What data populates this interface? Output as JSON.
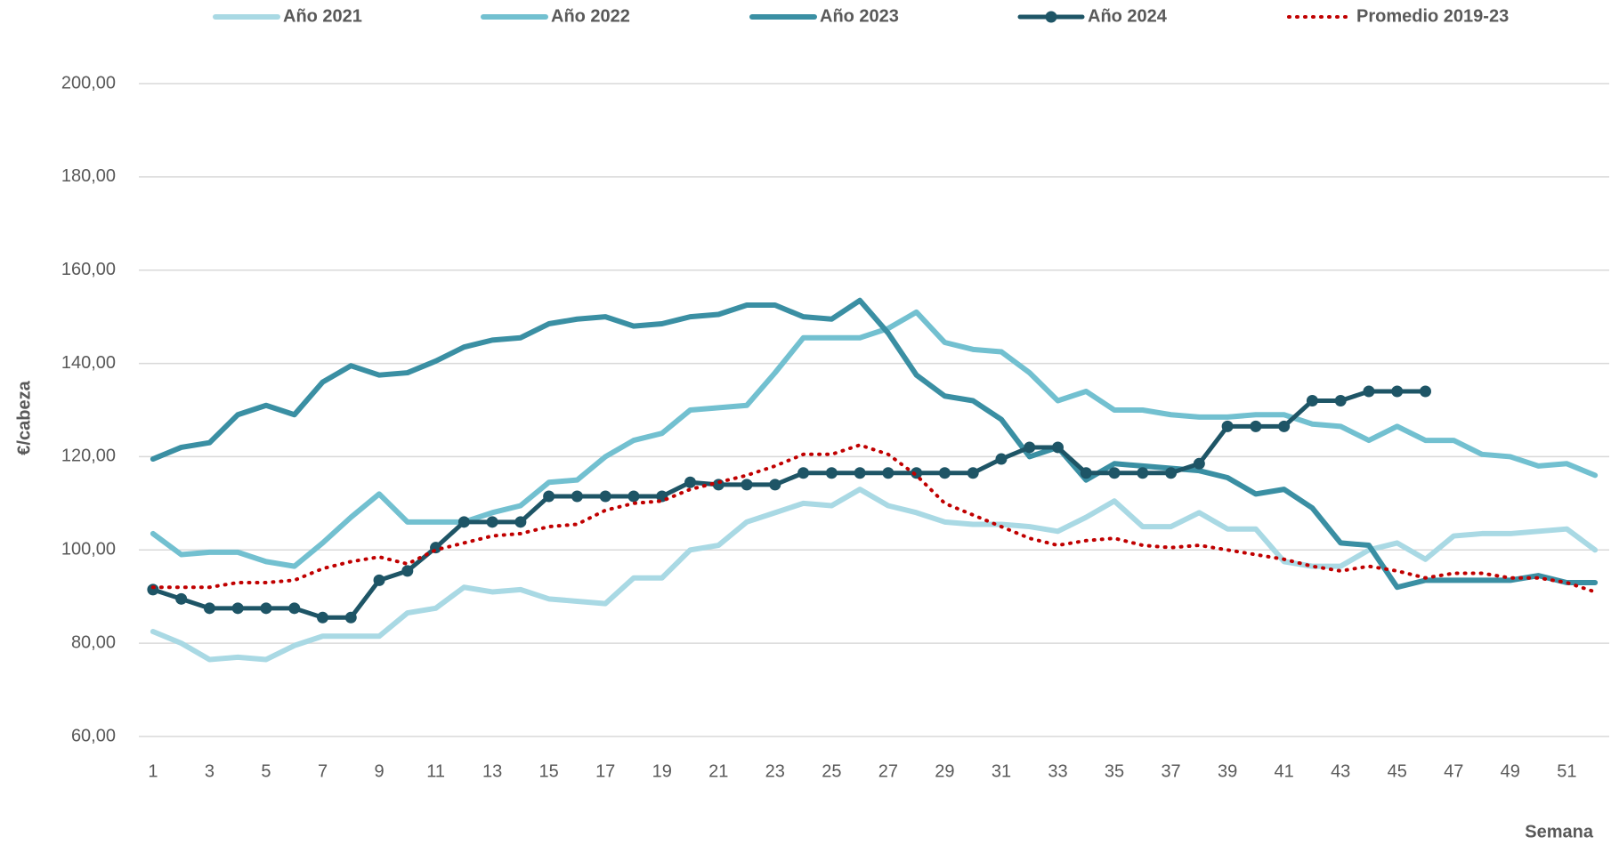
{
  "chart_data": {
    "type": "line",
    "y_label": "€/cabeza",
    "x_label": "Semana",
    "x": [
      1,
      2,
      3,
      4,
      5,
      6,
      7,
      8,
      9,
      10,
      11,
      12,
      13,
      14,
      15,
      16,
      17,
      18,
      19,
      20,
      21,
      22,
      23,
      24,
      25,
      26,
      27,
      28,
      29,
      30,
      31,
      32,
      33,
      34,
      35,
      36,
      37,
      38,
      39,
      40,
      41,
      42,
      43,
      44,
      45,
      46,
      47,
      48,
      49,
      50,
      51,
      52
    ],
    "xlim": [
      0.5,
      52.5
    ],
    "xticks": [
      1,
      3,
      5,
      7,
      9,
      11,
      13,
      15,
      17,
      19,
      21,
      23,
      25,
      27,
      29,
      31,
      33,
      35,
      37,
      39,
      41,
      43,
      45,
      47,
      49,
      51
    ],
    "ylim": [
      60,
      200
    ],
    "yticks": [
      {
        "value": 60,
        "label": "60,00"
      },
      {
        "value": 80,
        "label": "80,00"
      },
      {
        "value": 100,
        "label": "100,00"
      },
      {
        "value": 120,
        "label": "120,00"
      },
      {
        "value": 140,
        "label": "140,00"
      },
      {
        "value": 160,
        "label": "160,00"
      },
      {
        "value": 180,
        "label": "180,00"
      },
      {
        "value": 200,
        "label": "200,00"
      }
    ],
    "grid": true,
    "legend": "top",
    "series": [
      {
        "name": "Año 2021",
        "color": "#a9d9e4",
        "style": "solid",
        "markers": false,
        "values": [
          82.5,
          80,
          76.5,
          77,
          76.5,
          79.5,
          81.5,
          81.5,
          81.5,
          86.5,
          87.5,
          92,
          91,
          91.5,
          89.5,
          89,
          88.5,
          94,
          94,
          100,
          101,
          106,
          108,
          110,
          109.5,
          113,
          109.5,
          108,
          106,
          105.5,
          105.5,
          105,
          104,
          107,
          110.5,
          105,
          105,
          108,
          104.5,
          104.5,
          97.5,
          96.5,
          96.5,
          100,
          101.5,
          98,
          103,
          103.5,
          103.5,
          104,
          104.5,
          100
        ]
      },
      {
        "name": "Año 2022",
        "color": "#72c0d0",
        "style": "solid",
        "markers": false,
        "values": [
          103.5,
          99,
          99.5,
          99.5,
          97.5,
          96.5,
          101.5,
          107,
          112,
          106,
          106,
          106,
          108,
          109.5,
          114.5,
          115,
          120,
          123.5,
          125,
          130,
          130.5,
          131,
          138,
          145.5,
          145.5,
          145.5,
          147.5,
          151,
          144.5,
          143,
          142.5,
          138,
          132,
          134,
          130,
          130,
          129,
          128.5,
          128.5,
          129,
          129,
          127,
          126.5,
          123.5,
          126.5,
          123.5,
          123.5,
          120.5,
          120,
          118,
          118.5,
          116
        ]
      },
      {
        "name": "Año 2023",
        "color": "#3a8fa3",
        "style": "solid",
        "markers": false,
        "values": [
          119.5,
          122,
          123,
          129,
          131,
          129,
          136,
          139.5,
          137.5,
          138,
          140.5,
          143.5,
          145,
          145.5,
          148.5,
          149.5,
          150,
          148,
          148.5,
          150,
          150.5,
          152.5,
          152.5,
          150,
          149.5,
          153.5,
          146.5,
          137.5,
          133,
          132,
          128,
          120,
          122,
          115,
          118.5,
          118,
          117.5,
          117,
          115.5,
          112,
          113,
          109,
          101.5,
          101,
          92,
          93.5,
          93.5,
          93.5,
          93.5,
          94.5,
          93,
          93
        ]
      },
      {
        "name": "Año 2024",
        "color": "#1e5566",
        "style": "solid",
        "markers": true,
        "values": [
          91.5,
          89.5,
          87.5,
          87.5,
          87.5,
          87.5,
          85.5,
          85.5,
          93.5,
          95.5,
          100.5,
          106,
          106,
          106,
          111.5,
          111.5,
          111.5,
          111.5,
          111.5,
          114.5,
          114,
          114,
          114,
          116.5,
          116.5,
          116.5,
          116.5,
          116.5,
          116.5,
          116.5,
          119.5,
          122,
          122,
          116.5,
          116.5,
          116.5,
          116.5,
          118.5,
          126.5,
          126.5,
          126.5,
          132,
          132,
          134,
          134,
          134,
          null,
          null,
          null,
          null,
          null,
          null
        ]
      },
      {
        "name": "Promedio 2019-23",
        "color": "#c00000",
        "style": "dotted",
        "markers": false,
        "values": [
          92,
          92,
          92,
          93,
          93,
          93.5,
          96,
          97.5,
          98.5,
          97,
          100,
          101.5,
          103,
          103.5,
          105,
          105.5,
          108.5,
          110,
          110.5,
          113,
          114.5,
          116,
          118,
          120.5,
          120.5,
          122.5,
          120.5,
          116,
          110,
          107.5,
          105,
          102.5,
          101,
          102,
          102.5,
          101,
          100.5,
          101,
          100,
          99,
          98,
          96.5,
          95.5,
          96.5,
          95.5,
          94,
          95,
          95,
          94,
          94,
          93,
          91
        ]
      }
    ]
  }
}
